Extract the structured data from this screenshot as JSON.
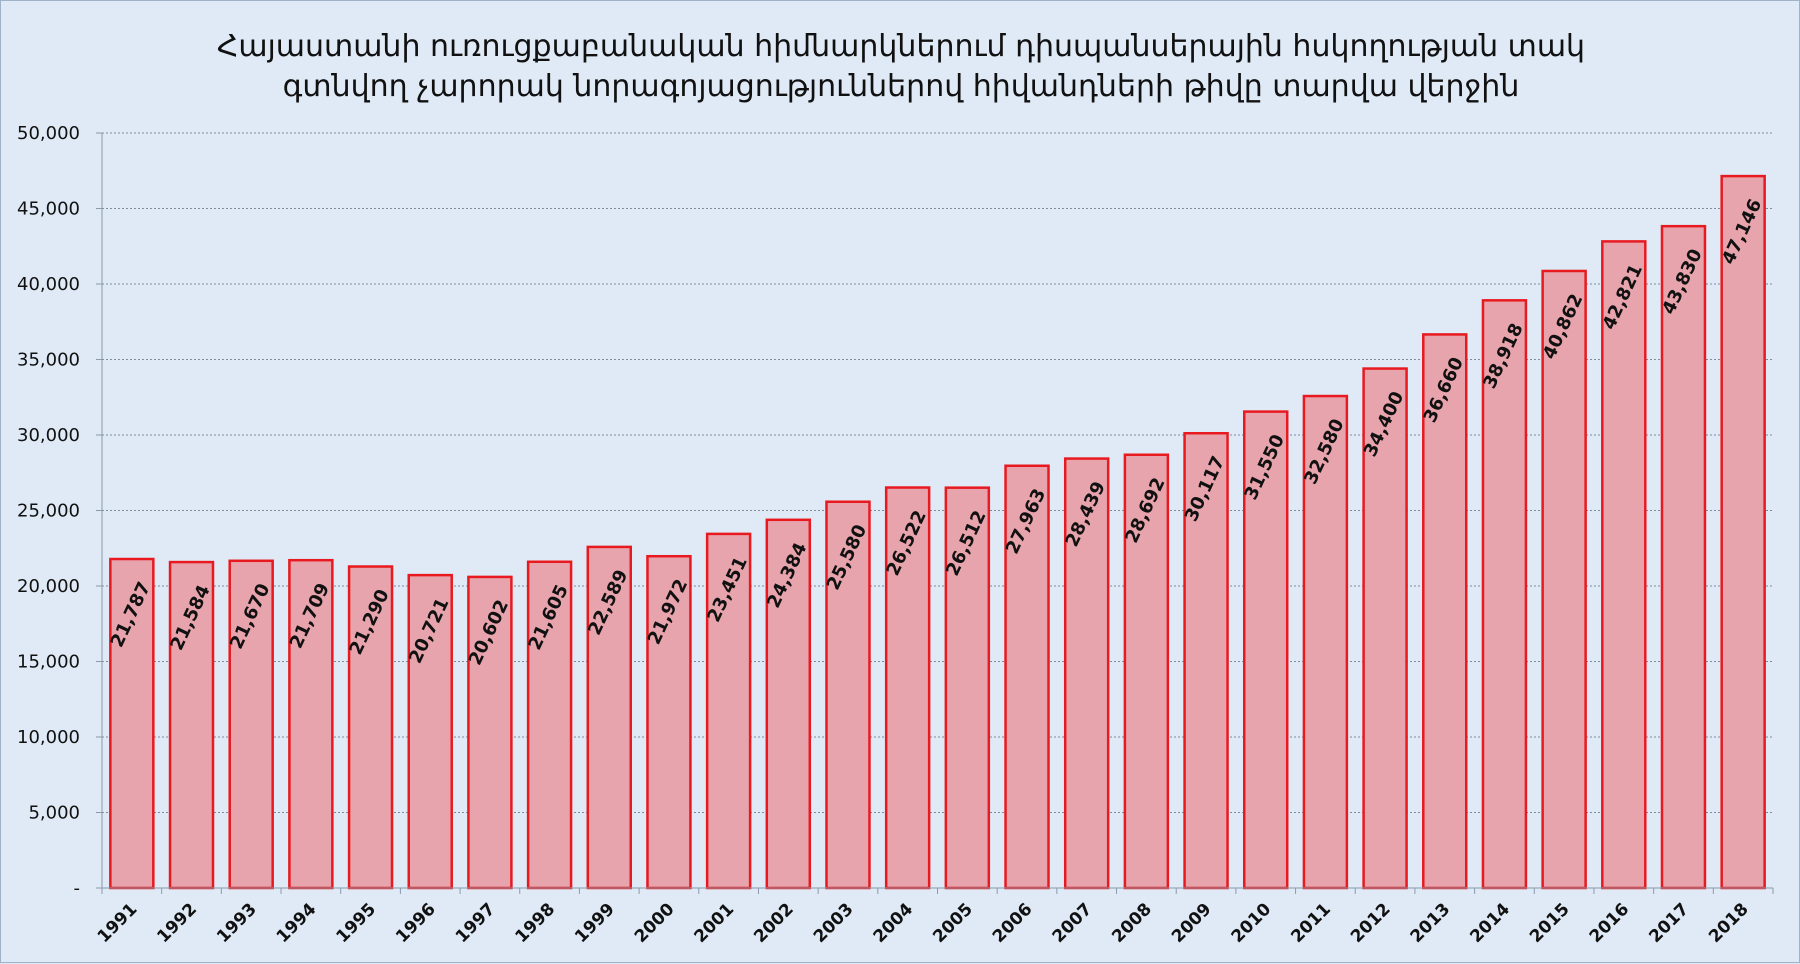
{
  "chart_data": {
    "type": "bar",
    "title": [
      "Հայաստանի ուռուցքաբանական հիմնարկներում դիսպանսերային հսկողության տակ",
      "գտնվող չարորակ նորագոյացություններով հիվանդների թիվը տարվա վերջին"
    ],
    "xlabel": "",
    "ylabel": "",
    "categories": [
      "1991",
      "1992",
      "1993",
      "1994",
      "1995",
      "1996",
      "1997",
      "1998",
      "1999",
      "2000",
      "2001",
      "2002",
      "2003",
      "2004",
      "2005",
      "2006",
      "2007",
      "2008",
      "2009",
      "2010",
      "2011",
      "2012",
      "2013",
      "2014",
      "2015",
      "2016",
      "2017",
      "2018"
    ],
    "values": [
      21787,
      21584,
      21670,
      21709,
      21290,
      20721,
      20602,
      21605,
      22589,
      21972,
      23451,
      24384,
      25580,
      26522,
      26512,
      27963,
      28439,
      28692,
      30117,
      31550,
      32580,
      34400,
      36660,
      38918,
      40862,
      42821,
      43830,
      47146
    ],
    "value_labels": [
      "21,787",
      "21,584",
      "21,670",
      "21,709",
      "21,290",
      "20,721",
      "20,602",
      "21,605",
      "22,589",
      "21,972",
      "23,451",
      "24,384",
      "25,580",
      "26,522",
      "26,512",
      "27,963",
      "28,439",
      "28,692",
      "30,117",
      "31,550",
      "32,580",
      "34,400",
      "36,660",
      "38,918",
      "40,862",
      "42,821",
      "43,830",
      "47,146"
    ],
    "ylim": [
      0,
      50000
    ],
    "yticks": [
      0,
      5000,
      10000,
      15000,
      20000,
      25000,
      30000,
      35000,
      40000,
      45000,
      50000
    ],
    "ytick_labels": [
      "-",
      "5,000",
      "10,000",
      "15,000",
      "20,000",
      "25,000",
      "30,000",
      "35,000",
      "40,000",
      "45,000",
      "50,000"
    ],
    "grid": true,
    "legend": "none",
    "colors": {
      "bar_fill": "#e8a4ad",
      "bar_stroke": "#e8191f",
      "background": "#dfeaf6"
    }
  }
}
